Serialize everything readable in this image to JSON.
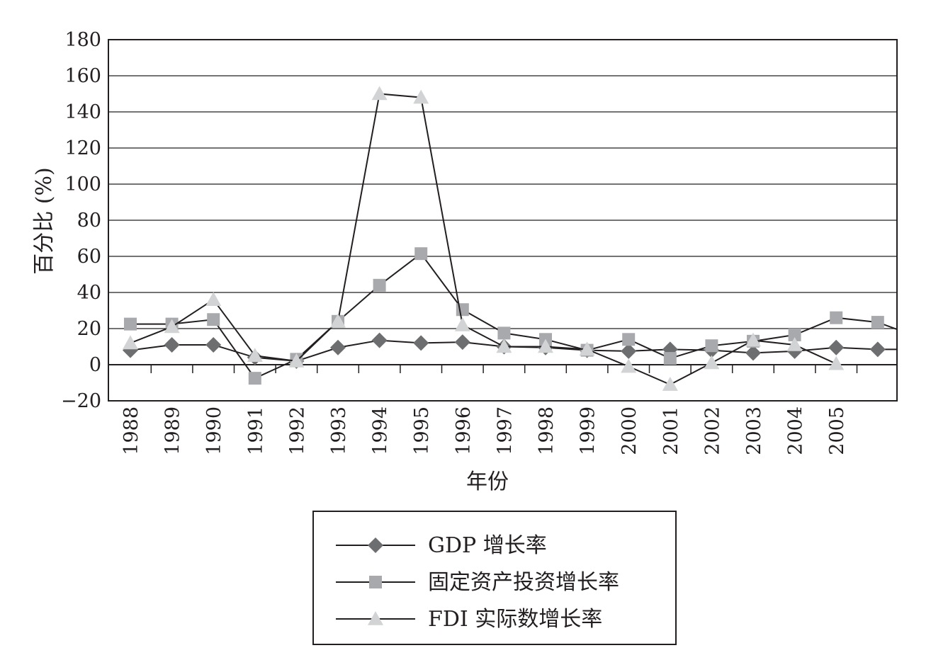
{
  "chart_data": {
    "type": "line",
    "title": "",
    "xlabel": "年份",
    "ylabel": "百分比 (%)",
    "ylim": [
      -20,
      180
    ],
    "yticks": [
      -20,
      0,
      20,
      40,
      60,
      80,
      100,
      120,
      140,
      160,
      180
    ],
    "categories": [
      "1988",
      "1989",
      "1990",
      "1991",
      "1992",
      "1993",
      "1994",
      "1995",
      "1996",
      "1997",
      "1998",
      "1999",
      "2000",
      "2001",
      "2002",
      "2003",
      "2004",
      "2005",
      ""
    ],
    "grid": "horizontal",
    "legend_position": "bottom-center",
    "series": [
      {
        "name": "GDP 增长率",
        "marker": "diamond",
        "marker_color": "#6d6e70",
        "values": [
          8,
          11,
          11,
          4,
          2,
          9.5,
          13.5,
          12,
          12.5,
          10,
          9.5,
          8,
          7.5,
          8.5,
          8,
          6.5,
          7.5,
          9.5,
          8.5
        ]
      },
      {
        "name": "固定资产投资增长率",
        "marker": "square",
        "marker_color": "#a7a9ac",
        "values": [
          22.5,
          22.5,
          25,
          -7.5,
          3,
          24,
          44,
          61.5,
          30.5,
          17.5,
          14,
          8,
          14,
          3.5,
          10.5,
          13,
          16.5,
          26,
          23.5
        ]
      },
      {
        "name": "FDI 实际数增长率",
        "marker": "triangle",
        "marker_color": "#d1d3d4",
        "values": [
          12,
          21,
          36,
          5,
          2,
          24,
          150,
          148,
          22,
          10,
          10,
          8.5,
          -1,
          -11,
          1,
          13.5,
          11,
          0.5,
          null
        ]
      }
    ]
  }
}
